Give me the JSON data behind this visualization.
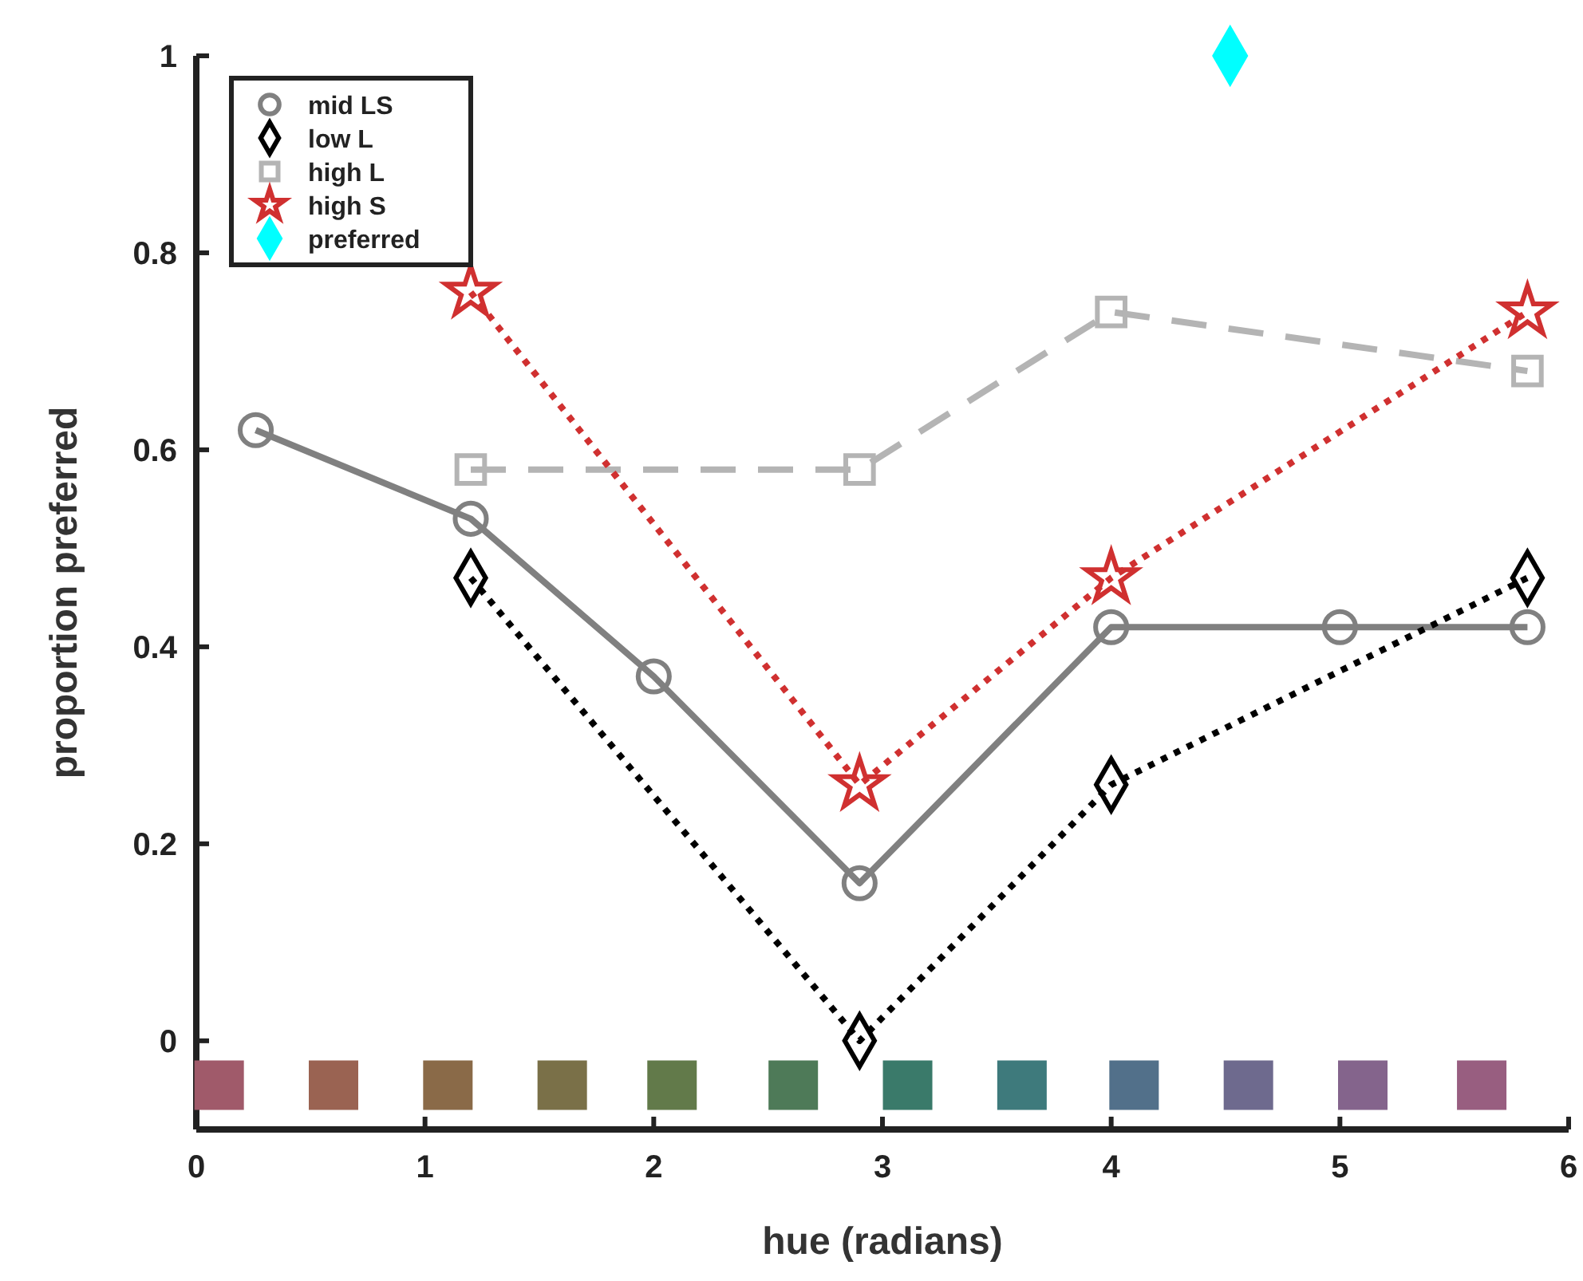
{
  "chart_data": {
    "type": "line",
    "xlabel": "hue (radians)",
    "ylabel": "proportion preferred",
    "xlim": [
      0,
      6
    ],
    "xticks": [
      0,
      1,
      2,
      3,
      4,
      5,
      6
    ],
    "ylim": [
      -0.09,
      1
    ],
    "yticks": [
      0,
      0.2,
      0.4,
      0.6,
      0.8,
      1
    ],
    "grid": false,
    "legend": "top left",
    "series": [
      {
        "name": "mid LS",
        "color": "#808080",
        "marker": "circle",
        "line_style": "solid",
        "x": [
          0.26,
          1.2,
          2.0,
          2.9,
          4.0,
          5.0,
          5.82
        ],
        "values": [
          0.62,
          0.53,
          0.37,
          0.16,
          0.42,
          0.42,
          0.42
        ]
      },
      {
        "name": "low L",
        "color": "#000000",
        "marker": "diamond",
        "line_style": "dotted",
        "x": [
          1.2,
          2.9,
          4.0,
          5.82
        ],
        "values": [
          0.47,
          0,
          0.26,
          0.47
        ]
      },
      {
        "name": "high L",
        "color": "#b4b4b4",
        "marker": "square",
        "line_style": "dashed",
        "x": [
          1.2,
          2.9,
          4.0,
          5.82
        ],
        "values": [
          0.58,
          0.58,
          0.74,
          0.68
        ]
      },
      {
        "name": "high S",
        "color": "#d03030",
        "marker": "star",
        "line_style": "dotted",
        "x": [
          1.2,
          2.9,
          4.0,
          5.82
        ],
        "values": [
          0.76,
          0.26,
          0.47,
          0.74
        ]
      },
      {
        "name": "preferred",
        "type": "scatter",
        "color": "#00ffff",
        "marker": "diamond",
        "x": [
          4.52
        ],
        "values": [
          1
        ]
      },
      {
        "type": "scatter",
        "marker": "square",
        "x": [
          0.1,
          0.6,
          1.1,
          1.6,
          2.08,
          2.61,
          3.11,
          3.61,
          4.1,
          4.6,
          5.1,
          5.62
        ],
        "values": [
          -0.045,
          -0.045,
          -0.045,
          -0.045,
          -0.045,
          -0.045,
          -0.045,
          -0.045,
          -0.045,
          -0.045,
          -0.045,
          -0.045
        ],
        "colors": [
          "#a05a6a",
          "#9a6352",
          "#8a6a48",
          "#7a7048",
          "#627a4a",
          "#4e7a58",
          "#3a7a6a",
          "#3e7a7c",
          "#52708a",
          "#6e6a8e",
          "#84648c",
          "#985e80"
        ]
      }
    ]
  }
}
